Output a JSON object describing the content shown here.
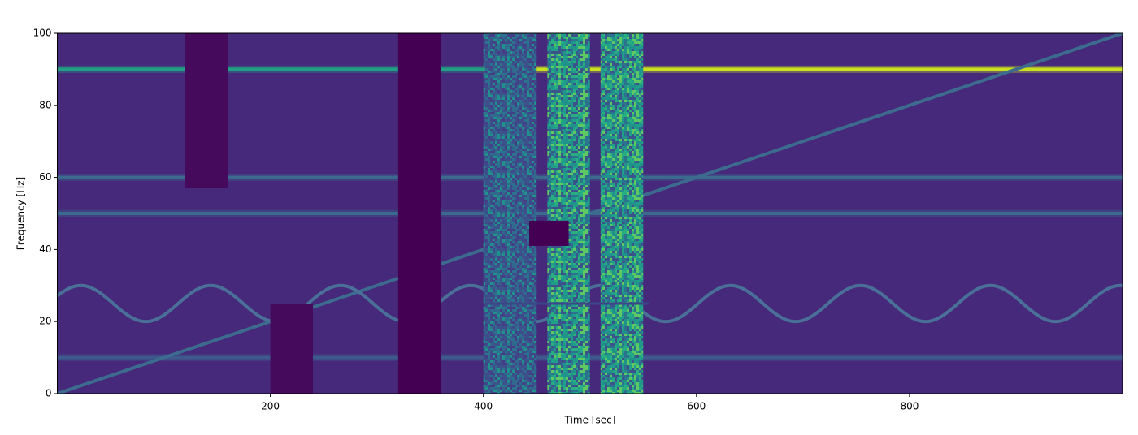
{
  "chart_data": {
    "type": "spectrogram",
    "xlabel": "Time [sec]",
    "ylabel": "Frequency [Hz]",
    "xlim": [
      0,
      1000
    ],
    "ylim": [
      0,
      100
    ],
    "xticks": [
      200,
      400,
      600,
      800
    ],
    "yticks": [
      0,
      20,
      40,
      60,
      80,
      100
    ],
    "background_color": "#46297a",
    "tones": [
      {
        "frequency": 10,
        "start": 0,
        "end": 1000,
        "color": "#3e5a8c"
      },
      {
        "frequency": 50,
        "start": 0,
        "end": 1000,
        "color": "#3b6a8e"
      },
      {
        "frequency": 60,
        "start": 0,
        "end": 1000,
        "color": "#3b6a8e"
      },
      {
        "frequency": 90,
        "start": 0,
        "end": 400,
        "color": "#22a085"
      },
      {
        "frequency": 90,
        "start": 400,
        "end": 1000,
        "color": "#c8e020"
      }
    ],
    "chirp": {
      "x": [
        0,
        1000
      ],
      "y": [
        0,
        100
      ],
      "color": "#3c6b8f"
    },
    "sinusoid": {
      "center": 25,
      "amplitude": 5,
      "period": 122,
      "peak_time": 22,
      "start": 0,
      "end": 1000,
      "color": "#4a6f98"
    },
    "noise_bursts": [
      {
        "start": 400,
        "end": 450,
        "colors": [
          "#3b528b",
          "#2c728e",
          "#433e85",
          "#31688e",
          "#21918c",
          "#3e4a89"
        ]
      },
      {
        "start": 460,
        "end": 500,
        "colors": [
          "#21918c",
          "#28ae80",
          "#2c728e",
          "#5ec962",
          "#3b528b",
          "#1f9e89"
        ]
      },
      {
        "start": 510,
        "end": 550,
        "colors": [
          "#21918c",
          "#28ae80",
          "#2c728e",
          "#5ec962",
          "#3b528b",
          "#1f9e89"
        ]
      }
    ],
    "narrow_tones": [
      {
        "frequency": 25,
        "start": 400,
        "end": 555,
        "color": "#3a4688"
      }
    ],
    "dropouts": [
      {
        "start": 120,
        "end": 160,
        "low": 57,
        "high": 100,
        "color": "#450a5c"
      },
      {
        "start": 200,
        "end": 240,
        "low": 0,
        "high": 25,
        "color": "#450a5c"
      },
      {
        "start": 320,
        "end": 360,
        "low": 0,
        "high": 100,
        "color": "#440154"
      },
      {
        "start": 443,
        "end": 480,
        "low": 41,
        "high": 48,
        "color": "#440154"
      }
    ]
  }
}
